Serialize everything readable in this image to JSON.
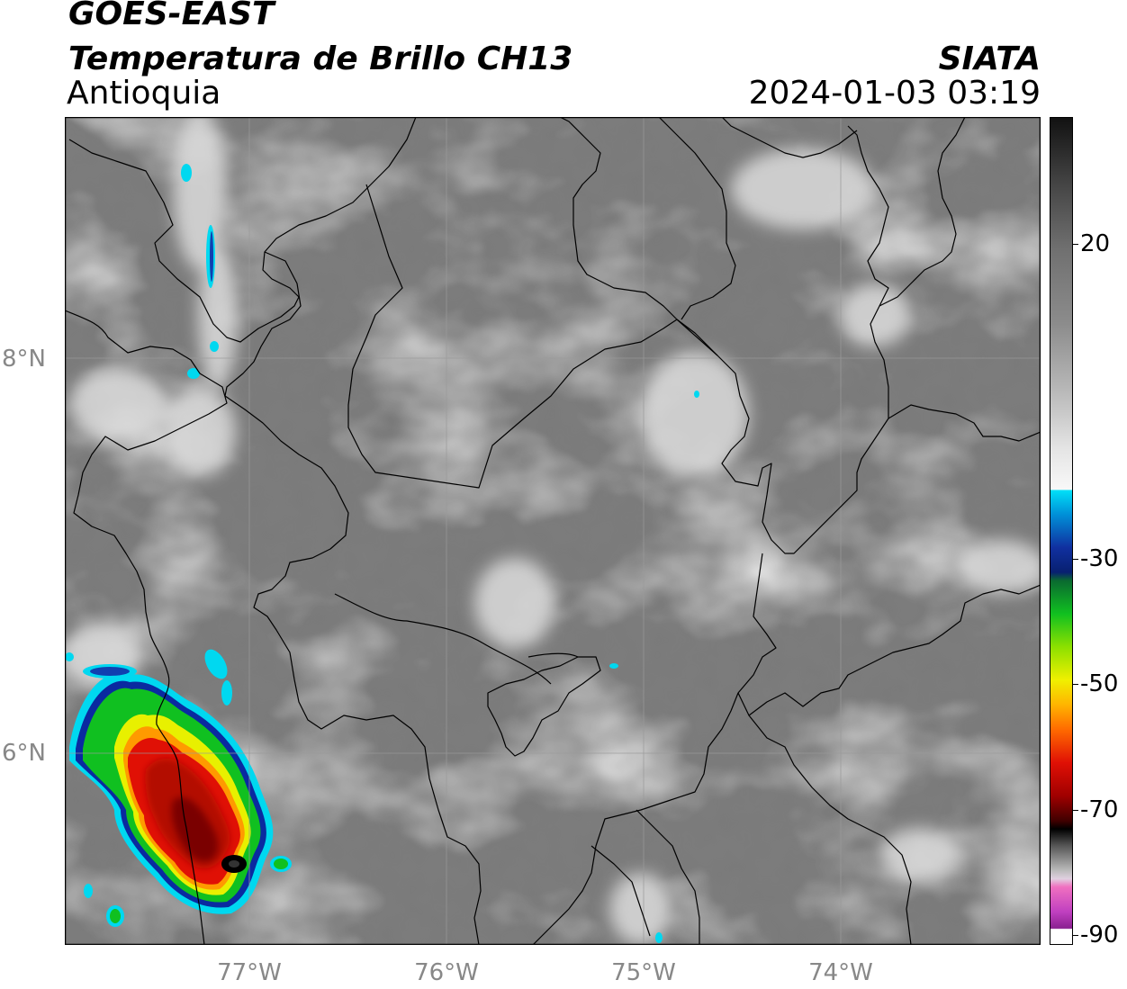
{
  "header": {
    "satellite": "GOES-EAST",
    "product": "Temperatura de Brillo CH13",
    "region": "Antioquia",
    "organization": "SIATA",
    "datetime": "2024-01-03 03:19"
  },
  "map": {
    "lat_labels": [
      "8°N",
      "6°N"
    ],
    "lon_labels": [
      "77°W",
      "76°W",
      "75°W",
      "74°W"
    ],
    "lat_values": [
      8,
      6
    ],
    "lon_values": [
      -77,
      -76,
      -75,
      -74
    ],
    "extent": {
      "lon": [
        -77.95,
        -73.05
      ],
      "lat": [
        5.05,
        9.25
      ]
    },
    "gridlines": true
  },
  "colorbar": {
    "tick_labels": [
      "20",
      "-30",
      "-50",
      "-70",
      "-90"
    ],
    "tick_values": [
      20,
      -30,
      -50,
      -70,
      -90
    ],
    "range": [
      -91,
      40
    ]
  },
  "colors": {
    "storm_core": "#5a0000",
    "storm_red": "#e01005",
    "storm_orange": "#ff9a00",
    "storm_yellow": "#e8f000",
    "storm_green": "#10c020",
    "storm_blue": "#0a2aa0",
    "storm_cyan": "#00d8f0",
    "background_gray": "#7c7c7c"
  }
}
